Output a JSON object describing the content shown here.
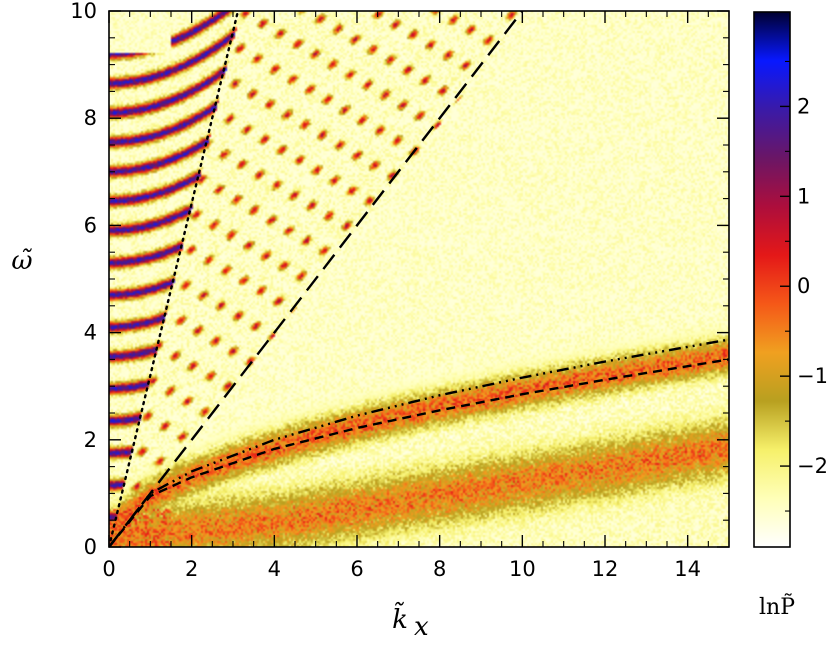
{
  "chart_data": {
    "type": "heatmap",
    "title": "",
    "xlabel": "k̃",
    "xlabel_subscript": "x",
    "ylabel": "ω̃",
    "xlim": [
      0,
      15
    ],
    "ylim": [
      0,
      10
    ],
    "x_ticks": [
      0,
      2,
      4,
      6,
      8,
      10,
      12,
      14
    ],
    "x_tick_labels": [
      "0",
      "2",
      "4",
      "6",
      "8",
      "10",
      "12",
      "14"
    ],
    "y_ticks": [
      0,
      2,
      4,
      6,
      8,
      10
    ],
    "y_tick_labels": [
      "0",
      "2",
      "4",
      "6",
      "8",
      "10"
    ],
    "colorbar": {
      "label": "lnP̃",
      "range": [
        -2.9,
        3.05
      ],
      "ticks": [
        -2,
        -1,
        0,
        1,
        2
      ],
      "tick_labels": [
        "−2",
        "−1",
        "0",
        "1",
        "2"
      ],
      "colormap": [
        "#ffffff",
        "#ffffb8",
        "#f6f06a",
        "#b8a020",
        "#f0a020",
        "#f55818",
        "#e41818",
        "#ad0e3c",
        "#6a1666",
        "#3a1aa8",
        "#0818ff",
        "#000030"
      ]
    },
    "curves": [
      {
        "name": "",
        "style": "dotted",
        "equation": "omega = 3.2 * kx",
        "points": [
          [
            0,
            0
          ],
          [
            3.12,
            10
          ]
        ]
      },
      {
        "name": "",
        "style": "long-dashed",
        "equation": "omega = kx",
        "points": [
          [
            0,
            0
          ],
          [
            10,
            10
          ]
        ]
      },
      {
        "name": "",
        "style": "dash-triple-dot",
        "equation": "omega = sqrt(kx)",
        "points": [
          [
            0,
            0
          ],
          [
            1,
            1.0
          ],
          [
            2,
            1.41
          ],
          [
            4,
            2.0
          ],
          [
            6,
            2.45
          ],
          [
            8,
            2.83
          ],
          [
            10,
            3.16
          ],
          [
            12,
            3.46
          ],
          [
            15,
            3.87
          ]
        ]
      },
      {
        "name": "",
        "style": "short-dashed",
        "equation": "omega ~ sqrt(kx) * 0.9",
        "points": [
          [
            0,
            0
          ],
          [
            1,
            0.95
          ],
          [
            2,
            1.3
          ],
          [
            4,
            1.83
          ],
          [
            6,
            2.22
          ],
          [
            8,
            2.55
          ],
          [
            10,
            2.85
          ],
          [
            12,
            3.12
          ],
          [
            15,
            3.5
          ]
        ]
      }
    ],
    "features": {
      "sound_wedge": {
        "lower_slope": 1.0,
        "upper_slope": 3.2,
        "mode_spacing": 0.55
      },
      "high_freq_modes_left": {
        "x_range": [
          0,
          3.2
        ],
        "levels": [
          0.55,
          1.15,
          1.75,
          2.35,
          2.95,
          3.55,
          4.1,
          4.7,
          5.3,
          5.9,
          6.45,
          7.0,
          7.55,
          8.1,
          8.65,
          9.2
        ]
      },
      "upper_branch": {
        "equation": "omega ~ 0.9 sqrt(kx)",
        "peak_lnP": 0.6
      },
      "lower_branch": {
        "center": [
          [
            0,
            0.15
          ],
          [
            4,
            0.45
          ],
          [
            8,
            0.95
          ],
          [
            12,
            1.45
          ],
          [
            15,
            1.85
          ]
        ],
        "peak_lnP": 0.3
      },
      "white_region": {
        "description_text": ""
      }
    }
  }
}
